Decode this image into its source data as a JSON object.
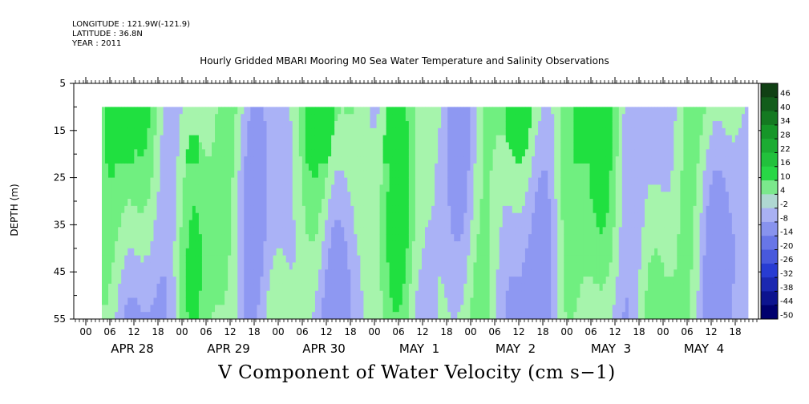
{
  "header": {
    "longitude": "LONGITUDE : 121.9W(-121.9)",
    "latitude": "LATITUDE : 36.8N",
    "year": "YEAR : 2011"
  },
  "chart_data": {
    "type": "heatmap",
    "title": "Hourly Gridded MBARI Mooring M0 Sea Water Temperature and Salinity Observations",
    "xlabel": "V Component of Water Velocity (cm s−1)",
    "ylabel": "DEPTH (m)",
    "ylim": [
      5,
      55
    ],
    "y_ticks": [
      5,
      15,
      25,
      35,
      45,
      55
    ],
    "data_depth_range": [
      10,
      55
    ],
    "x_hour_ticks": [
      "00",
      "06",
      "12",
      "18",
      "00",
      "06",
      "12",
      "18",
      "00",
      "06",
      "12",
      "18",
      "00",
      "06",
      "12",
      "18",
      "00",
      "06",
      "12",
      "18",
      "00",
      "06",
      "12",
      "18",
      "00",
      "06",
      "12",
      "18"
    ],
    "x_day_labels": [
      "APR 28",
      "APR 29",
      "APR 30",
      "MAY  1",
      "MAY  2",
      "MAY  3",
      "MAY  4"
    ],
    "colorbar": {
      "levels": [
        46,
        40,
        34,
        28,
        22,
        16,
        10,
        4,
        -2,
        -8,
        -14,
        -20,
        -26,
        -32,
        -38,
        -44,
        -50
      ],
      "range": [
        -50,
        50
      ]
    },
    "colors": {
      "green_strong": "#20e040",
      "green_mid": "#70ef80",
      "green_light": "#a6f4ac",
      "blue_light": "#aab2f6",
      "blue_mid": "#8e98f2"
    }
  }
}
